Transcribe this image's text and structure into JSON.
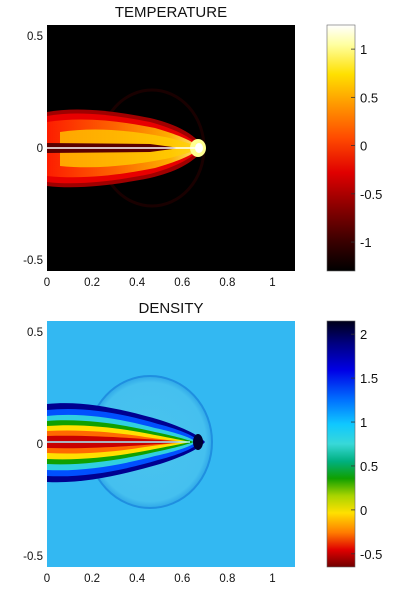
{
  "chart_data": [
    {
      "type": "heatmap",
      "title": "TEMPERATURE",
      "xlabel": "",
      "ylabel": "",
      "xlim": [
        0,
        1.1
      ],
      "ylim": [
        -0.55,
        0.55
      ],
      "x_ticks": [
        0,
        0.2,
        0.4,
        0.6,
        0.8,
        1
      ],
      "x_tick_labels": [
        "0",
        "0.2",
        "0.4",
        "0.6",
        "0.8",
        "1"
      ],
      "y_ticks": [
        0.5,
        0,
        -0.5
      ],
      "y_tick_labels": [
        "0.5",
        "0",
        "-0.5"
      ],
      "colorbar": {
        "range": [
          -1.3,
          1.25
        ],
        "ticks": [
          1,
          0.5,
          0,
          -0.5,
          -1
        ],
        "tick_labels": [
          "1",
          "0.5",
          "0",
          "-0.5",
          "-1"
        ],
        "colormap": "hot",
        "stops": [
          "#000000",
          "#4a0000",
          "#c80000",
          "#ff3000",
          "#ff8c00",
          "#ffd000",
          "#ffff60",
          "#ffffff"
        ]
      },
      "background_color": "#000000"
    },
    {
      "type": "heatmap",
      "title": "DENSITY",
      "xlabel": "",
      "ylabel": "",
      "xlim": [
        0,
        1.1
      ],
      "ylim": [
        -0.55,
        0.55
      ],
      "x_ticks": [
        0,
        0.2,
        0.4,
        0.6,
        0.8,
        1
      ],
      "x_tick_labels": [
        "0",
        "0.2",
        "0.4",
        "0.6",
        "0.8",
        "1"
      ],
      "y_ticks": [
        0.5,
        0,
        -0.5
      ],
      "y_tick_labels": [
        "0.5",
        "0",
        "-0.5"
      ],
      "colorbar": {
        "range": [
          -0.65,
          2.15
        ],
        "ticks": [
          2,
          1.5,
          1,
          0.5,
          0,
          -0.5
        ],
        "tick_labels": [
          "2",
          "1.5",
          "1",
          "0.5",
          "0",
          "-0.5"
        ],
        "colormap": "jet-reversed",
        "stops": [
          "#000018",
          "#00006a",
          "#0000d8",
          "#0060ff",
          "#00b4ff",
          "#2ad6e6",
          "#00c088",
          "#1ea000",
          "#a8d000",
          "#ffe000",
          "#ff7c00",
          "#e80000",
          "#7a0000"
        ]
      },
      "background_color": "#33b8f2"
    }
  ]
}
